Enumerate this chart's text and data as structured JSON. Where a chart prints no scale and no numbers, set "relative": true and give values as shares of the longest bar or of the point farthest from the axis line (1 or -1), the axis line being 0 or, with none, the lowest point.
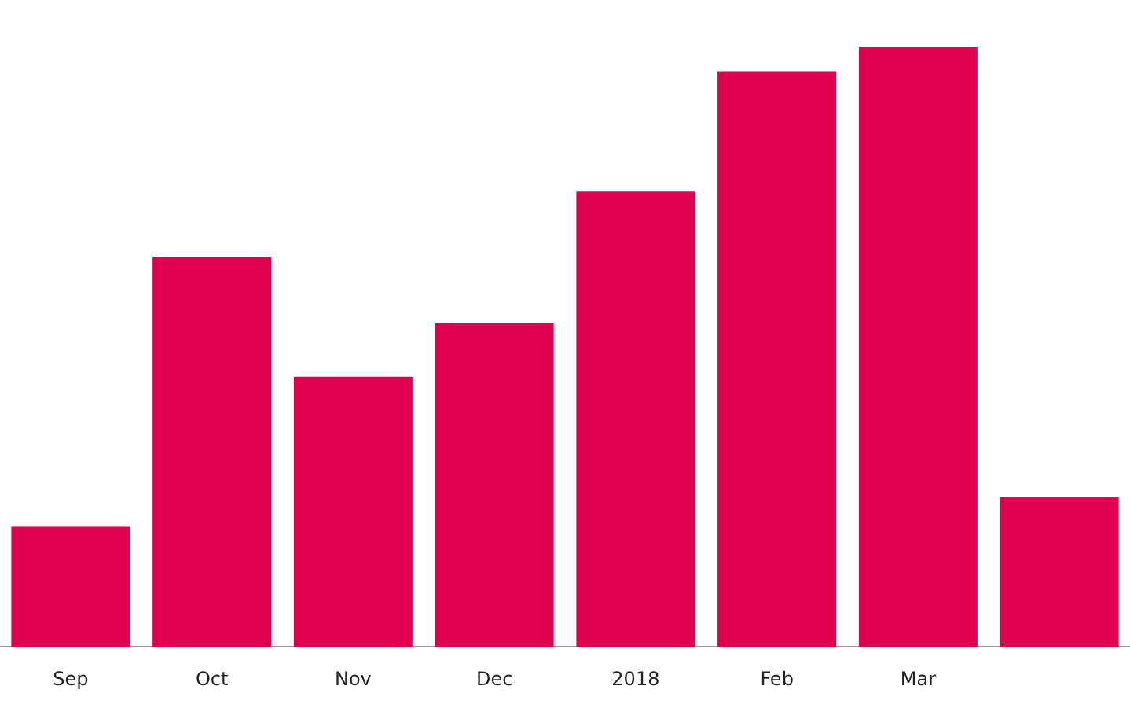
{
  "chart_data": {
    "type": "bar",
    "relative": true,
    "categories": [
      "Sep",
      "Oct",
      "Nov",
      "Dec",
      "2018",
      "Feb",
      "Mar",
      null
    ],
    "values": [
      0.2,
      0.65,
      0.45,
      0.54,
      0.76,
      0.96,
      1,
      0.25
    ],
    "color": "#e0004d",
    "grid": false,
    "legend": false
  }
}
